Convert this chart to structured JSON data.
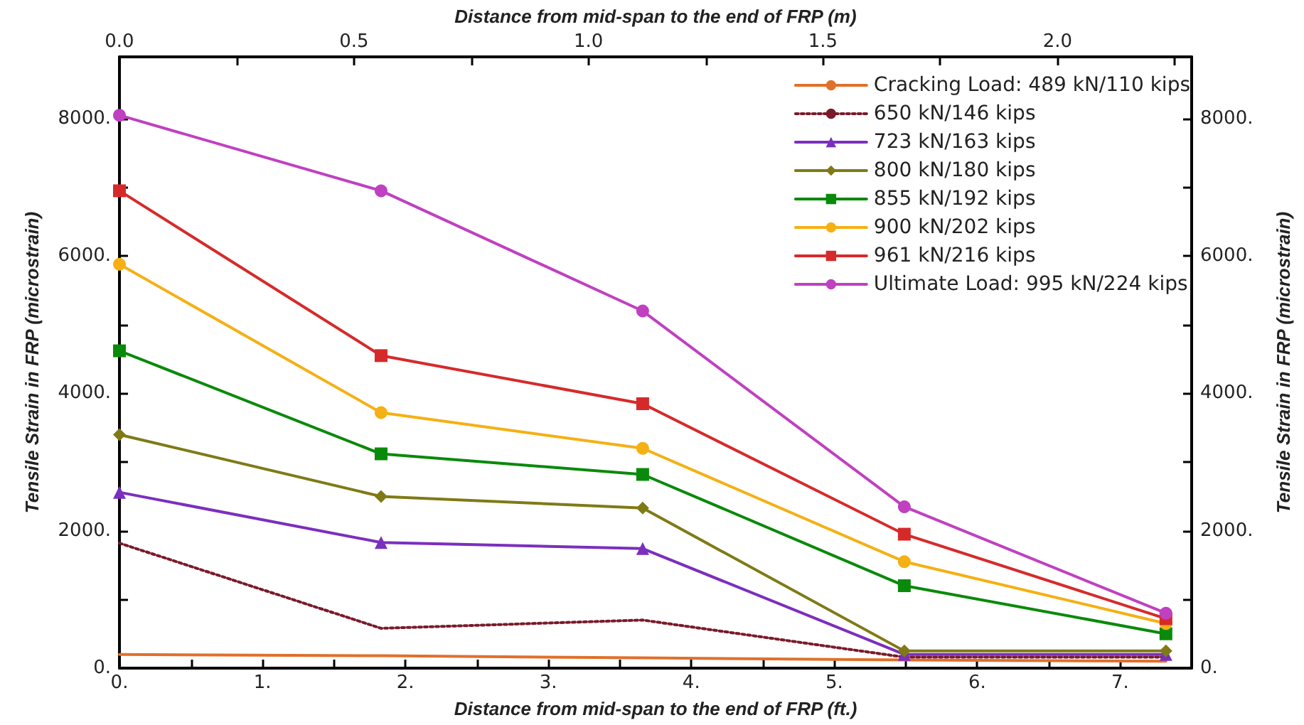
{
  "chart_data": {
    "type": "line",
    "xlabel": "Distance from mid-span to the end of FRP (ft.)",
    "x2label": "Distance from mid-span to the end of FRP (m)",
    "ylabel": "Tensile Strain in FRP (microstrain)",
    "y2label": "Tensile Strain in FRP (microstrain)",
    "x": [
      0,
      1.83,
      3.66,
      5.49,
      7.32
    ],
    "series": [
      {
        "name": "Cracking Load: 489 kN/110 kips",
        "color": "#e0702a",
        "marker": "none",
        "line_style": "solid",
        "values": [
          200,
          180,
          150,
          120,
          100
        ]
      },
      {
        "name": "650 kN/146 kips",
        "color": "#7a1a2a",
        "marker": "none",
        "line_style": "dotted",
        "values": [
          1820,
          580,
          700,
          160,
          160
        ]
      },
      {
        "name": "723 kN/163 kips",
        "color": "#7b2fbe",
        "marker": "triangle",
        "line_style": "solid",
        "values": [
          2560,
          1830,
          1740,
          200,
          200
        ]
      },
      {
        "name": "800 kN/180 kips",
        "color": "#7f7a16",
        "marker": "diamond",
        "line_style": "solid",
        "values": [
          3400,
          2500,
          2330,
          250,
          250
        ]
      },
      {
        "name": "855 kN/192 kips",
        "color": "#0a8a0a",
        "marker": "square",
        "line_style": "solid",
        "values": [
          4620,
          3120,
          2820,
          1200,
          500
        ]
      },
      {
        "name": "900 kN/202 kips",
        "color": "#f5b014",
        "marker": "circle",
        "line_style": "solid",
        "values": [
          5880,
          3720,
          3200,
          1550,
          650
        ]
      },
      {
        "name": "961 kN/216 kips",
        "color": "#d62a2a",
        "marker": "square",
        "line_style": "solid",
        "values": [
          6950,
          4550,
          3850,
          1950,
          720
        ]
      },
      {
        "name": "Ultimate Load: 995 kN/224 kips",
        "color": "#c040c0",
        "marker": "circle",
        "line_style": "solid",
        "values": [
          8050,
          6950,
          5200,
          2350,
          800
        ]
      }
    ],
    "xlim": [
      0,
      7.5
    ],
    "xticks": [
      {
        "value": 0,
        "label": "0."
      },
      {
        "value": 0.5,
        "label": null
      },
      {
        "value": 1,
        "label": "1."
      },
      {
        "value": 1.5,
        "label": null
      },
      {
        "value": 2,
        "label": "2."
      },
      {
        "value": 2.5,
        "label": null
      },
      {
        "value": 3,
        "label": "3."
      },
      {
        "value": 3.5,
        "label": null
      },
      {
        "value": 4,
        "label": "4."
      },
      {
        "value": 4.5,
        "label": null
      },
      {
        "value": 5,
        "label": "5."
      },
      {
        "value": 5.5,
        "label": null
      },
      {
        "value": 6,
        "label": "6."
      },
      {
        "value": 6.5,
        "label": null
      },
      {
        "value": 7,
        "label": "7."
      }
    ],
    "x2lim": [
      0,
      2.286
    ],
    "x2ticks": [
      {
        "value": 0,
        "label": "0.0"
      },
      {
        "value": 0.25,
        "label": null
      },
      {
        "value": 0.5,
        "label": "0.5"
      },
      {
        "value": 0.75,
        "label": null
      },
      {
        "value": 1,
        "label": "1.0"
      },
      {
        "value": 1.25,
        "label": null
      },
      {
        "value": 1.5,
        "label": "1.5"
      },
      {
        "value": 1.75,
        "label": null
      },
      {
        "value": 2,
        "label": "2.0"
      },
      {
        "value": 2.25,
        "label": null
      }
    ],
    "ylim": [
      0,
      8900
    ],
    "yticks": [
      {
        "value": 0,
        "label": "0."
      },
      {
        "value": 1000,
        "label": null
      },
      {
        "value": 2000,
        "label": "2000."
      },
      {
        "value": 3000,
        "label": null
      },
      {
        "value": 4000,
        "label": "4000."
      },
      {
        "value": 5000,
        "label": null
      },
      {
        "value": 6000,
        "label": "6000."
      },
      {
        "value": 7000,
        "label": null
      },
      {
        "value": 8000,
        "label": "8000."
      }
    ],
    "y2lim": [
      0,
      8900
    ],
    "y2ticks": [
      {
        "value": 0,
        "label": "0."
      },
      {
        "value": 1000,
        "label": null
      },
      {
        "value": 2000,
        "label": "2000."
      },
      {
        "value": 3000,
        "label": null
      },
      {
        "value": 4000,
        "label": "4000."
      },
      {
        "value": 5000,
        "label": null
      },
      {
        "value": 6000,
        "label": "6000."
      },
      {
        "value": 7000,
        "label": null
      },
      {
        "value": 8000,
        "label": "8000."
      }
    ],
    "grid": false,
    "legend": "top right"
  }
}
